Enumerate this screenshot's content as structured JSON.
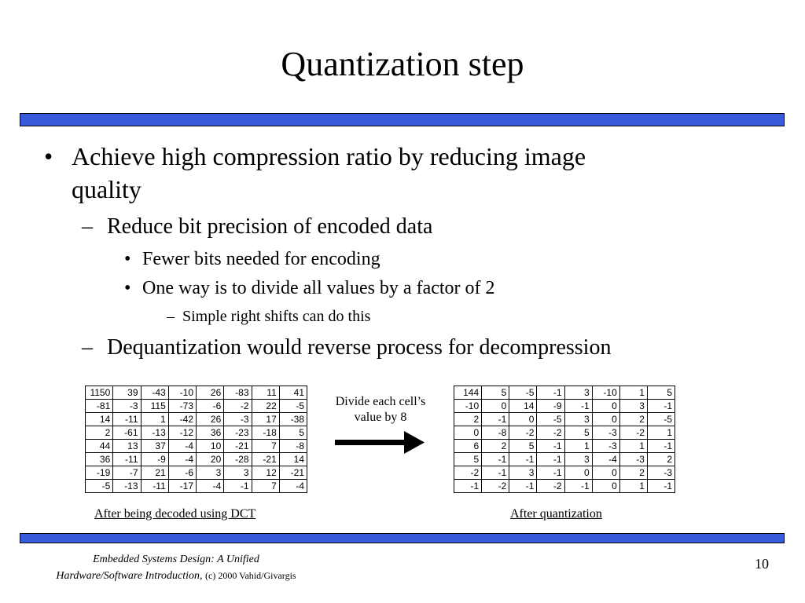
{
  "title": "Quantization step",
  "colors": {
    "rule_bar": "#3a5bd9"
  },
  "bullets": {
    "b1_line1": "Achieve high compression ratio by reducing image",
    "b1_line2": "quality",
    "b1_1": "Reduce bit precision of encoded data",
    "b1_1_1": "Fewer bits needed for encoding",
    "b1_1_2": "One way is to divide all values by a factor of 2",
    "b1_1_2_1": "Simple right shifts can do this",
    "b1_2": "Dequantization would reverse process for decompression"
  },
  "marks": {
    "bullet": "•",
    "dash": "–"
  },
  "tables": {
    "left": {
      "caption": "After being decoded using DCT",
      "rows": [
        [
          "1150",
          "39",
          "-43",
          "-10",
          "26",
          "-83",
          "11",
          "41"
        ],
        [
          "-81",
          "-3",
          "115",
          "-73",
          "-6",
          "-2",
          "22",
          "-5"
        ],
        [
          "14",
          "-11",
          "1",
          "-42",
          "26",
          "-3",
          "17",
          "-38"
        ],
        [
          "2",
          "-61",
          "-13",
          "-12",
          "36",
          "-23",
          "-18",
          "5"
        ],
        [
          "44",
          "13",
          "37",
          "-4",
          "10",
          "-21",
          "7",
          "-8"
        ],
        [
          "36",
          "-11",
          "-9",
          "-4",
          "20",
          "-28",
          "-21",
          "14"
        ],
        [
          "-19",
          "-7",
          "21",
          "-6",
          "3",
          "3",
          "12",
          "-21"
        ],
        [
          "-5",
          "-13",
          "-11",
          "-17",
          "-4",
          "-1",
          "7",
          "-4"
        ]
      ]
    },
    "right": {
      "caption": "After quantization",
      "rows": [
        [
          "144",
          "5",
          "-5",
          "-1",
          "3",
          "-10",
          "1",
          "5"
        ],
        [
          "-10",
          "0",
          "14",
          "-9",
          "-1",
          "0",
          "3",
          "-1"
        ],
        [
          "2",
          "-1",
          "0",
          "-5",
          "3",
          "0",
          "2",
          "-5"
        ],
        [
          "0",
          "-8",
          "-2",
          "-2",
          "5",
          "-3",
          "-2",
          "1"
        ],
        [
          "6",
          "2",
          "5",
          "-1",
          "1",
          "-3",
          "1",
          "-1"
        ],
        [
          "5",
          "-1",
          "-1",
          "-1",
          "3",
          "-4",
          "-3",
          "2"
        ],
        [
          "-2",
          "-1",
          "3",
          "-1",
          "0",
          "0",
          "2",
          "-3"
        ],
        [
          "-1",
          "-2",
          "-1",
          "-2",
          "-1",
          "0",
          "1",
          "-1"
        ]
      ]
    }
  },
  "divide_note": {
    "line1": "Divide each cell’s",
    "line2": "value  by 8"
  },
  "footer": {
    "book_line1": "Embedded Systems Design: A Unified",
    "book_line2": "Hardware/Software Introduction,",
    "copyright": "(c) 2000 Vahid/Givargis",
    "page_number": "10"
  }
}
